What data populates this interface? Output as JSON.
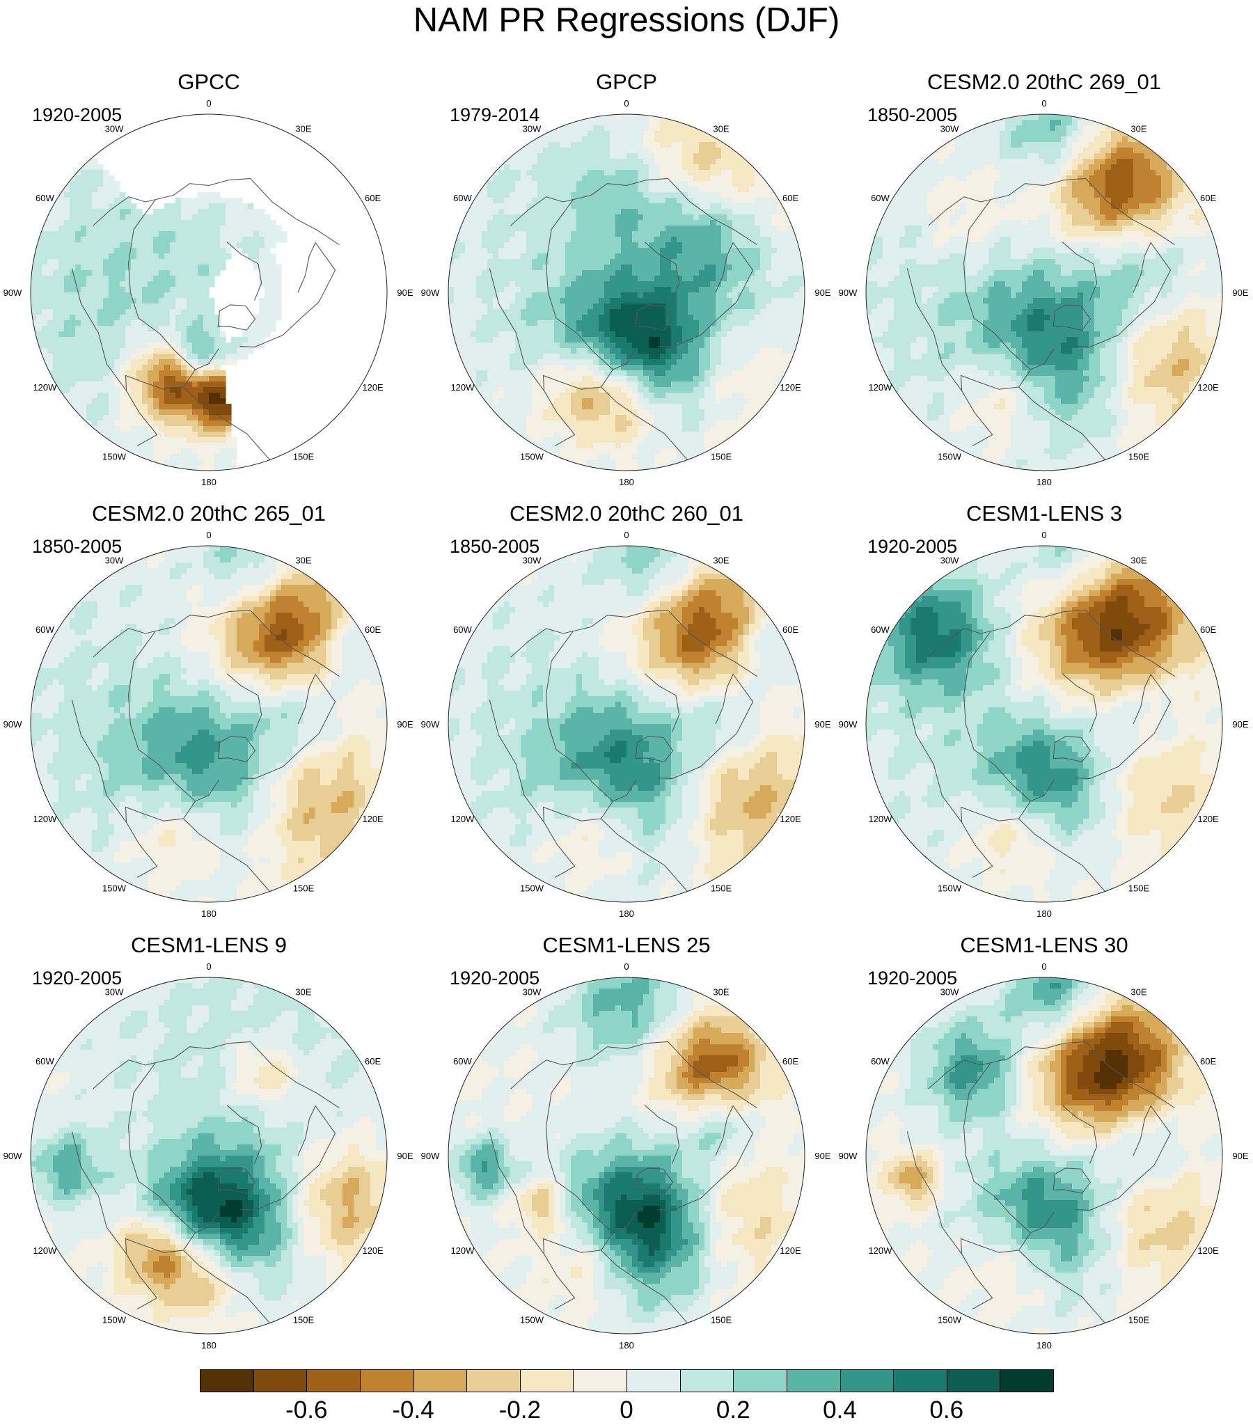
{
  "title": "NAM PR Regressions (DJF)",
  "lon_labels": [
    "180",
    "150E",
    "120E",
    "90E",
    "60E",
    "30E",
    "0",
    "30W",
    "60W",
    "90W",
    "120W",
    "150W"
  ],
  "panels": [
    {
      "title": "GPCC",
      "period": "1920-2005",
      "masked": true,
      "blobs": [
        {
          "lon": 245,
          "r": 0.72,
          "v": -0.35,
          "s": 0.04
        },
        {
          "lon": 260,
          "r": 0.74,
          "v": 0.35,
          "s": 0.05
        },
        {
          "lon": 8,
          "r": 0.5,
          "v": -0.45,
          "s": 0.1
        },
        {
          "lon": 25,
          "r": 0.55,
          "v": -0.4,
          "s": 0.08
        },
        {
          "lon": 350,
          "r": 0.62,
          "v": -0.55,
          "s": 0.06
        },
        {
          "lon": 0,
          "r": 0.38,
          "v": 0.35,
          "s": 0.06
        },
        {
          "lon": 15,
          "r": 0.34,
          "v": 0.3,
          "s": 0.05
        },
        {
          "lon": 60,
          "r": 0.4,
          "v": 0.1,
          "s": 0.3
        },
        {
          "lon": 100,
          "r": 0.5,
          "v": 0.12,
          "s": 0.25
        }
      ]
    },
    {
      "title": "GPCP",
      "period": "1979-2014",
      "masked": false,
      "blobs": [
        {
          "lon": 210,
          "r": 0.8,
          "v": -0.3,
          "s": 0.14
        },
        {
          "lon": 180,
          "r": 0.55,
          "v": 0.25,
          "s": 0.12
        },
        {
          "lon": 230,
          "r": 0.55,
          "v": 0.3,
          "s": 0.1
        },
        {
          "lon": 5,
          "r": 0.35,
          "v": 0.55,
          "s": 0.16
        },
        {
          "lon": 335,
          "r": 0.42,
          "v": 0.45,
          "s": 0.13
        },
        {
          "lon": 0,
          "r": 0.6,
          "v": -0.55,
          "s": 0.1
        },
        {
          "lon": 25,
          "r": 0.58,
          "v": -0.45,
          "s": 0.1
        },
        {
          "lon": 310,
          "r": 0.6,
          "v": -0.3,
          "s": 0.13
        },
        {
          "lon": 270,
          "r": 0.55,
          "v": 0.2,
          "s": 0.14
        },
        {
          "lon": 120,
          "r": 0.6,
          "v": 0.1,
          "s": 0.3
        }
      ]
    },
    {
      "title": "CESM2.0 20thC 269_01",
      "period": "1850-2005",
      "masked": false,
      "blobs": [
        {
          "lon": 215,
          "r": 0.72,
          "v": -0.65,
          "s": 0.13
        },
        {
          "lon": 185,
          "r": 0.9,
          "v": 0.35,
          "s": 0.1
        },
        {
          "lon": 255,
          "r": 0.55,
          "v": 0.3,
          "s": 0.12
        },
        {
          "lon": 355,
          "r": 0.35,
          "v": 0.55,
          "s": 0.16
        },
        {
          "lon": 300,
          "r": 0.75,
          "v": -0.35,
          "s": 0.14
        },
        {
          "lon": 20,
          "r": 0.6,
          "v": -0.4,
          "s": 0.1
        },
        {
          "lon": 135,
          "r": 0.6,
          "v": -0.15,
          "s": 0.1
        },
        {
          "lon": 90,
          "r": 0.6,
          "v": 0.12,
          "s": 0.3
        }
      ]
    },
    {
      "title": "CESM2.0 20thC 265_01",
      "period": "1850-2005",
      "masked": false,
      "blobs": [
        {
          "lon": 220,
          "r": 0.68,
          "v": -0.7,
          "s": 0.14
        },
        {
          "lon": 195,
          "r": 0.9,
          "v": 0.35,
          "s": 0.1
        },
        {
          "lon": 240,
          "r": 0.9,
          "v": 0.3,
          "s": 0.08
        },
        {
          "lon": 355,
          "r": 0.35,
          "v": 0.6,
          "s": 0.17
        },
        {
          "lon": 310,
          "r": 0.68,
          "v": -0.45,
          "s": 0.16
        },
        {
          "lon": 15,
          "r": 0.6,
          "v": -0.45,
          "s": 0.11
        },
        {
          "lon": 260,
          "r": 0.5,
          "v": 0.3,
          "s": 0.1
        },
        {
          "lon": 100,
          "r": 0.6,
          "v": 0.12,
          "s": 0.3
        }
      ]
    },
    {
      "title": "CESM2.0 20thC 260_01",
      "period": "1850-2005",
      "masked": false,
      "blobs": [
        {
          "lon": 220,
          "r": 0.68,
          "v": -0.65,
          "s": 0.14
        },
        {
          "lon": 190,
          "r": 0.9,
          "v": 0.35,
          "s": 0.1
        },
        {
          "lon": 240,
          "r": 0.9,
          "v": 0.3,
          "s": 0.08
        },
        {
          "lon": 355,
          "r": 0.35,
          "v": 0.65,
          "s": 0.17
        },
        {
          "lon": 305,
          "r": 0.7,
          "v": -0.45,
          "s": 0.16
        },
        {
          "lon": 15,
          "r": 0.6,
          "v": -0.45,
          "s": 0.11
        },
        {
          "lon": 265,
          "r": 0.55,
          "v": 0.3,
          "s": 0.1
        },
        {
          "lon": 100,
          "r": 0.6,
          "v": 0.1,
          "s": 0.3
        }
      ]
    },
    {
      "title": "CESM1-LENS 3",
      "period": "1920-2005",
      "masked": false,
      "blobs": [
        {
          "lon": 215,
          "r": 0.68,
          "v": -0.75,
          "s": 0.15
        },
        {
          "lon": 190,
          "r": 0.92,
          "v": 0.35,
          "s": 0.1
        },
        {
          "lon": 130,
          "r": 0.8,
          "v": 0.5,
          "s": 0.12
        },
        {
          "lon": 0,
          "r": 0.35,
          "v": 0.55,
          "s": 0.13
        },
        {
          "lon": 15,
          "r": 0.6,
          "v": -0.4,
          "s": 0.1
        },
        {
          "lon": 300,
          "r": 0.72,
          "v": -0.25,
          "s": 0.14
        },
        {
          "lon": 260,
          "r": 0.55,
          "v": 0.25,
          "s": 0.1
        },
        {
          "lon": 80,
          "r": 0.6,
          "v": 0.1,
          "s": 0.3
        }
      ]
    },
    {
      "title": "CESM1-LENS 9",
      "period": "1920-2005",
      "masked": false,
      "blobs": [
        {
          "lon": 215,
          "r": 0.55,
          "v": -0.3,
          "s": 0.07
        },
        {
          "lon": 290,
          "r": 0.78,
          "v": -0.4,
          "s": 0.12
        },
        {
          "lon": 330,
          "r": 0.4,
          "v": 0.35,
          "s": 0.15
        },
        {
          "lon": 5,
          "r": 0.38,
          "v": 0.6,
          "s": 0.12
        },
        {
          "lon": 5,
          "r": 0.62,
          "v": -0.6,
          "s": 0.1
        },
        {
          "lon": 30,
          "r": 0.6,
          "v": -0.45,
          "s": 0.08
        },
        {
          "lon": 85,
          "r": 0.8,
          "v": 0.35,
          "s": 0.07
        },
        {
          "lon": 200,
          "r": 0.6,
          "v": 0.15,
          "s": 0.3
        }
      ]
    },
    {
      "title": "CESM1-LENS 25",
      "period": "1920-2005",
      "masked": false,
      "blobs": [
        {
          "lon": 225,
          "r": 0.68,
          "v": -0.6,
          "s": 0.11
        },
        {
          "lon": 180,
          "r": 0.85,
          "v": 0.35,
          "s": 0.12
        },
        {
          "lon": 250,
          "r": 0.55,
          "v": 0.35,
          "s": 0.08
        },
        {
          "lon": 0,
          "r": 0.38,
          "v": 0.6,
          "s": 0.14
        },
        {
          "lon": 330,
          "r": 0.45,
          "v": 0.3,
          "s": 0.14
        },
        {
          "lon": 20,
          "r": 0.6,
          "v": -0.4,
          "s": 0.1
        },
        {
          "lon": 300,
          "r": 0.68,
          "v": -0.3,
          "s": 0.13
        },
        {
          "lon": 85,
          "r": 0.8,
          "v": 0.4,
          "s": 0.06
        },
        {
          "lon": 60,
          "r": 0.55,
          "v": -0.35,
          "s": 0.05
        }
      ]
    },
    {
      "title": "CESM1-LENS 30",
      "period": "1920-2005",
      "masked": false,
      "blobs": [
        {
          "lon": 215,
          "r": 0.62,
          "v": -0.8,
          "s": 0.14
        },
        {
          "lon": 185,
          "r": 0.9,
          "v": 0.5,
          "s": 0.1
        },
        {
          "lon": 140,
          "r": 0.62,
          "v": 0.45,
          "s": 0.1
        },
        {
          "lon": 0,
          "r": 0.38,
          "v": 0.6,
          "s": 0.14
        },
        {
          "lon": 300,
          "r": 0.7,
          "v": -0.3,
          "s": 0.13
        },
        {
          "lon": 15,
          "r": 0.6,
          "v": -0.35,
          "s": 0.1
        },
        {
          "lon": 80,
          "r": 0.75,
          "v": -0.4,
          "s": 0.05
        },
        {
          "lon": 265,
          "r": 0.55,
          "v": 0.3,
          "s": 0.1
        }
      ]
    }
  ],
  "colorbar": {
    "colors": [
      "#543005",
      "#7f4a0c",
      "#9f6118",
      "#c08130",
      "#d6aa5a",
      "#e8ce94",
      "#f6e8c3",
      "#f5f0e4",
      "#e1f0ee",
      "#c0e8e0",
      "#8fd5c8",
      "#5ab4a8",
      "#34958a",
      "#1b7a6e",
      "#0b5e51",
      "#003c30"
    ],
    "labels": [
      "-0.6",
      "-0.4",
      "-0.2",
      "0",
      "0.2",
      "0.4",
      "0.6"
    ]
  }
}
